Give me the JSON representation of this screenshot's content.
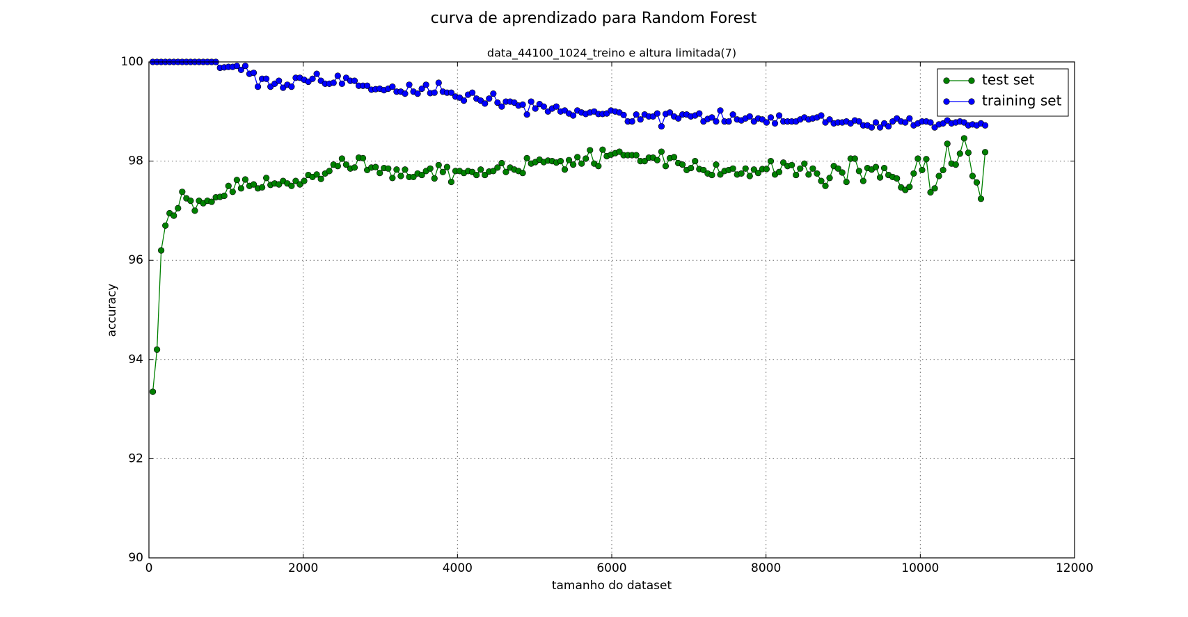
{
  "chart_data": {
    "type": "line",
    "title": "curva de aprendizado para Random Forest",
    "subtitle": "data_44100_1024_treino e altura limitada(7)",
    "xlabel": "tamanho do dataset",
    "ylabel": "accuracy",
    "x": [
      50,
      104.5,
      159,
      213.5,
      268,
      322.5,
      377,
      431.5,
      486,
      540.5,
      595,
      649.5,
      704,
      758.5,
      813,
      867.5,
      922,
      976.5,
      1031,
      1085.5,
      1140,
      1194.5,
      1249,
      1303.5,
      1358,
      1412.5,
      1467,
      1521.5,
      1576,
      1630.5,
      1685,
      1739.5,
      1794,
      1848.5,
      1903,
      1957.5,
      2012,
      2066.5,
      2121,
      2175.5,
      2230,
      2284.5,
      2339,
      2393.5,
      2448,
      2502.5,
      2557,
      2611.5,
      2666,
      2720.5,
      2775,
      2829.5,
      2884,
      2938.5,
      2993,
      3047.5,
      3102,
      3156.5,
      3211,
      3265.5,
      3320,
      3374.5,
      3429,
      3483.5,
      3538,
      3592.5,
      3647,
      3701.5,
      3756,
      3810.5,
      3865,
      3919.5,
      3974,
      4028.5,
      4083,
      4137.5,
      4192,
      4246.5,
      4301,
      4355.5,
      4410,
      4464.5,
      4519,
      4573.5,
      4628,
      4682.5,
      4737,
      4791.5,
      4846,
      4900.5,
      4955,
      5009.5,
      5064,
      5118.5,
      5173,
      5227.5,
      5282,
      5336.5,
      5391,
      5445.5,
      5500,
      5554.5,
      5609,
      5663.5,
      5718,
      5772.5,
      5827,
      5881.5,
      5936,
      5990.5,
      6045,
      6099.5,
      6154,
      6208.5,
      6263,
      6317.5,
      6372,
      6426.5,
      6481,
      6535.5,
      6590,
      6644.5,
      6699,
      6753.5,
      6808,
      6862.5,
      6917,
      6971.5,
      7026,
      7080.5,
      7135,
      7189.5,
      7244,
      7298.5,
      7353,
      7407.5,
      7462,
      7516.5,
      7571,
      7625.5,
      7680,
      7734.5,
      7789,
      7843.5,
      7898,
      7952.5,
      8007,
      8061.5,
      8116,
      8170.5,
      8225,
      8279.5,
      8334,
      8388.5,
      8443,
      8497.5,
      8552,
      8606.5,
      8661,
      8715.5,
      8770,
      8824.5,
      8879,
      8933.5,
      8988,
      9042.5,
      9097,
      9151.5,
      9206,
      9260.5,
      9315,
      9369.5,
      9424,
      9478.5,
      9533,
      9587.5,
      9642,
      9696.5,
      9751,
      9805.5,
      9860,
      9914.5,
      9969,
      10023.5,
      10078,
      10132.5,
      10187,
      10241.5,
      10296,
      10350.5,
      10405,
      10459.5,
      10514,
      10568.5,
      10623,
      10677.5,
      10732,
      10786.5,
      10841
    ],
    "series": [
      {
        "name": "test set",
        "color": "#008000",
        "values": [
          93.35,
          94.2,
          96.2,
          96.7,
          96.95,
          96.9,
          97.05,
          97.38,
          97.25,
          97.2,
          97.0,
          97.2,
          97.15,
          97.2,
          97.18,
          97.27,
          97.28,
          97.3,
          97.5,
          97.38,
          97.62,
          97.45,
          97.63,
          97.5,
          97.53,
          97.45,
          97.47,
          97.66,
          97.52,
          97.55,
          97.53,
          97.6,
          97.55,
          97.5,
          97.6,
          97.53,
          97.6,
          97.72,
          97.68,
          97.73,
          97.64,
          97.75,
          97.8,
          97.93,
          97.9,
          98.05,
          97.93,
          97.85,
          97.87,
          98.07,
          98.06,
          97.82,
          97.87,
          97.88,
          97.76,
          97.86,
          97.85,
          97.66,
          97.83,
          97.7,
          97.83,
          97.68,
          97.68,
          97.75,
          97.72,
          97.8,
          97.85,
          97.65,
          97.92,
          97.78,
          97.88,
          97.58,
          97.8,
          97.8,
          97.76,
          97.8,
          97.78,
          97.72,
          97.83,
          97.72,
          97.79,
          97.8,
          97.87,
          97.96,
          97.78,
          97.87,
          97.83,
          97.8,
          97.76,
          98.06,
          97.95,
          97.98,
          98.03,
          97.98,
          98.01,
          98.0,
          97.97,
          98.0,
          97.83,
          98.02,
          97.93,
          98.08,
          97.95,
          98.05,
          98.22,
          97.95,
          97.9,
          98.23,
          98.1,
          98.13,
          98.16,
          98.19,
          98.12,
          98.12,
          98.12,
          98.12,
          98.0,
          98.0,
          98.07,
          98.07,
          98.02,
          98.19,
          97.9,
          98.06,
          98.08,
          97.96,
          97.93,
          97.82,
          97.86,
          98.0,
          97.84,
          97.82,
          97.75,
          97.72,
          97.93,
          97.73,
          97.8,
          97.82,
          97.85,
          97.73,
          97.75,
          97.85,
          97.7,
          97.83,
          97.76,
          97.84,
          97.84,
          98.0,
          97.73,
          97.78,
          97.97,
          97.9,
          97.92,
          97.72,
          97.85,
          97.95,
          97.73,
          97.85,
          97.75,
          97.6,
          97.5,
          97.66,
          97.9,
          97.85,
          97.77,
          97.58,
          98.05,
          98.05,
          97.8,
          97.6,
          97.86,
          97.83,
          97.88,
          97.67,
          97.86,
          97.72,
          97.68,
          97.65,
          97.47,
          97.42,
          97.48,
          97.75,
          98.05,
          97.82,
          98.04,
          97.37,
          97.45,
          97.7,
          97.82,
          98.35,
          97.95,
          97.93,
          98.15,
          98.46,
          98.17,
          97.7,
          97.57,
          97.24,
          98.18
        ]
      },
      {
        "name": "training set",
        "color": "#0000ff",
        "values": [
          100,
          100,
          100,
          100,
          100,
          100,
          100,
          100,
          100,
          100,
          100,
          100,
          100,
          100,
          100,
          100,
          99.88,
          99.89,
          99.9,
          99.9,
          99.92,
          99.84,
          99.92,
          99.76,
          99.78,
          99.5,
          99.66,
          99.66,
          99.5,
          99.56,
          99.62,
          99.48,
          99.54,
          99.5,
          99.68,
          99.68,
          99.64,
          99.6,
          99.66,
          99.76,
          99.62,
          99.56,
          99.56,
          99.58,
          99.72,
          99.56,
          99.68,
          99.62,
          99.62,
          99.52,
          99.52,
          99.52,
          99.44,
          99.45,
          99.46,
          99.43,
          99.46,
          99.5,
          99.4,
          99.4,
          99.36,
          99.54,
          99.4,
          99.36,
          99.46,
          99.54,
          99.37,
          99.38,
          99.58,
          99.4,
          99.38,
          99.38,
          99.3,
          99.28,
          99.22,
          99.34,
          99.38,
          99.26,
          99.22,
          99.16,
          99.26,
          99.36,
          99.18,
          99.1,
          99.2,
          99.2,
          99.18,
          99.12,
          99.14,
          98.94,
          99.2,
          99.06,
          99.15,
          99.1,
          99.0,
          99.06,
          99.1,
          99.0,
          99.02,
          98.96,
          98.92,
          99.02,
          98.98,
          98.95,
          98.98,
          99.0,
          98.95,
          98.95,
          98.96,
          99.02,
          99.0,
          98.98,
          98.93,
          98.8,
          98.8,
          98.94,
          98.84,
          98.94,
          98.9,
          98.9,
          98.96,
          98.7,
          98.95,
          98.98,
          98.9,
          98.86,
          98.94,
          98.94,
          98.9,
          98.92,
          98.96,
          98.8,
          98.85,
          98.88,
          98.8,
          99.02,
          98.8,
          98.8,
          98.94,
          98.84,
          98.82,
          98.86,
          98.9,
          98.8,
          98.86,
          98.84,
          98.78,
          98.88,
          98.76,
          98.92,
          98.8,
          98.8,
          98.8,
          98.8,
          98.84,
          98.88,
          98.84,
          98.86,
          98.88,
          98.92,
          98.78,
          98.84,
          98.76,
          98.78,
          98.78,
          98.8,
          98.76,
          98.82,
          98.8,
          98.72,
          98.72,
          98.68,
          98.78,
          98.68,
          98.76,
          98.7,
          98.8,
          98.86,
          98.8,
          98.78,
          98.86,
          98.72,
          98.76,
          98.8,
          98.8,
          98.78,
          98.68,
          98.74,
          98.76,
          98.82,
          98.76,
          98.78,
          98.8,
          98.78,
          98.72,
          98.74,
          98.72,
          98.76,
          98.72
        ]
      }
    ],
    "xlim": [
      0,
      12000
    ],
    "xticks": [
      0,
      2000,
      4000,
      6000,
      8000,
      10000,
      12000
    ],
    "ylim": [
      90,
      100
    ],
    "yticks": [
      90,
      92,
      94,
      96,
      98,
      100
    ],
    "grid": true,
    "legend": "upper right"
  }
}
